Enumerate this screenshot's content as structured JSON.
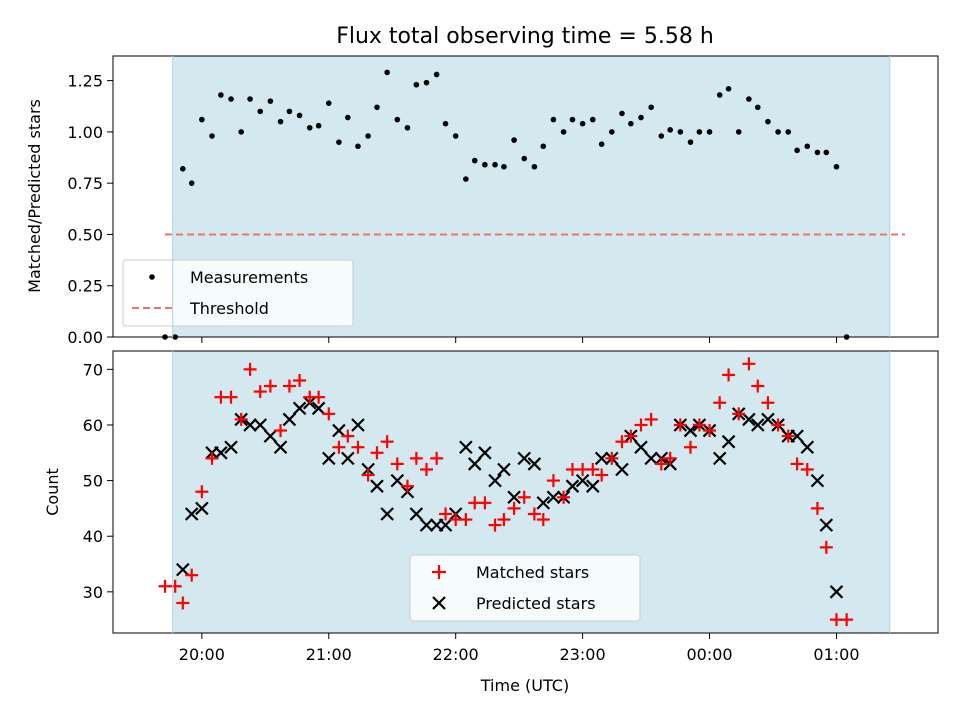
{
  "chart_data": [
    {
      "type": "scatter",
      "title": "Flux total observing time = 5.58 h",
      "xlabel": "",
      "ylabel": "Matched/Predicted stars",
      "xlim_hours": [
        19.3,
        25.8
      ],
      "ylim": [
        0,
        1.37
      ],
      "yticks": [
        0,
        0.25,
        0.5,
        0.75,
        1.0,
        1.25
      ],
      "ytick_labels": [
        "0.00",
        "0.25",
        "0.50",
        "0.75",
        "1.00",
        "1.25"
      ],
      "shaded_span_hours": [
        19.77,
        25.42
      ],
      "shade_color": "#d3e9ef",
      "legend_position": "lower-left",
      "series": [
        {
          "name": "Measurements",
          "marker": "dot",
          "color": "#000000",
          "points": [
            [
              19.71,
              0.0
            ],
            [
              19.79,
              0.0
            ],
            [
              19.85,
              0.82
            ],
            [
              19.92,
              0.75
            ],
            [
              20.0,
              1.06
            ],
            [
              20.08,
              0.98
            ],
            [
              20.15,
              1.18
            ],
            [
              20.23,
              1.16
            ],
            [
              20.31,
              1.0
            ],
            [
              20.38,
              1.16
            ],
            [
              20.46,
              1.1
            ],
            [
              20.54,
              1.15
            ],
            [
              20.62,
              1.05
            ],
            [
              20.69,
              1.1
            ],
            [
              20.77,
              1.08
            ],
            [
              20.85,
              1.02
            ],
            [
              20.92,
              1.03
            ],
            [
              21.0,
              1.14
            ],
            [
              21.08,
              0.95
            ],
            [
              21.15,
              1.07
            ],
            [
              21.23,
              0.93
            ],
            [
              21.31,
              0.98
            ],
            [
              21.38,
              1.12
            ],
            [
              21.46,
              1.29
            ],
            [
              21.54,
              1.06
            ],
            [
              21.62,
              1.02
            ],
            [
              21.69,
              1.23
            ],
            [
              21.77,
              1.24
            ],
            [
              21.85,
              1.28
            ],
            [
              21.92,
              1.04
            ],
            [
              22.0,
              0.98
            ],
            [
              22.08,
              0.77
            ],
            [
              22.15,
              0.86
            ],
            [
              22.23,
              0.84
            ],
            [
              22.31,
              0.84
            ],
            [
              22.38,
              0.83
            ],
            [
              22.46,
              0.96
            ],
            [
              22.54,
              0.87
            ],
            [
              22.62,
              0.83
            ],
            [
              22.69,
              0.93
            ],
            [
              22.77,
              1.06
            ],
            [
              22.85,
              1.0
            ],
            [
              22.92,
              1.06
            ],
            [
              23.0,
              1.04
            ],
            [
              23.08,
              1.06
            ],
            [
              23.15,
              0.94
            ],
            [
              23.23,
              1.0
            ],
            [
              23.31,
              1.09
            ],
            [
              23.38,
              1.04
            ],
            [
              23.46,
              1.07
            ],
            [
              23.54,
              1.12
            ],
            [
              23.62,
              0.98
            ],
            [
              23.69,
              1.01
            ],
            [
              23.77,
              1.0
            ],
            [
              23.85,
              0.95
            ],
            [
              23.92,
              1.0
            ],
            [
              24.0,
              1.0
            ],
            [
              24.08,
              1.18
            ],
            [
              24.15,
              1.21
            ],
            [
              24.23,
              1.0
            ],
            [
              24.31,
              1.16
            ],
            [
              24.38,
              1.12
            ],
            [
              24.46,
              1.05
            ],
            [
              24.54,
              1.0
            ],
            [
              24.62,
              1.0
            ],
            [
              24.69,
              0.91
            ],
            [
              24.77,
              0.93
            ],
            [
              24.85,
              0.9
            ],
            [
              24.92,
              0.9
            ],
            [
              25.0,
              0.83
            ],
            [
              25.08,
              0.0
            ]
          ]
        },
        {
          "name": "Threshold",
          "style": "dashed",
          "color": "#f07070",
          "x": [
            19.71,
            25.54
          ],
          "y": [
            0.5,
            0.5
          ]
        }
      ]
    },
    {
      "type": "scatter",
      "title": "",
      "xlabel": "Time (UTC)",
      "ylabel": "Count",
      "xlim_hours": [
        19.3,
        25.8
      ],
      "ylim": [
        22.6,
        73.3
      ],
      "yticks": [
        30,
        40,
        50,
        60,
        70
      ],
      "ytick_labels": [
        "30",
        "40",
        "50",
        "60",
        "70"
      ],
      "xticks_hours": [
        20,
        21,
        22,
        23,
        24,
        25
      ],
      "xtick_labels": [
        "20:00",
        "21:00",
        "22:00",
        "23:00",
        "00:00",
        "01:00"
      ],
      "shaded_span_hours": [
        19.77,
        25.42
      ],
      "shade_color": "#d3e9ef",
      "legend_position": "lower-center",
      "series": [
        {
          "name": "Matched stars",
          "marker": "plus",
          "color": "#ff0000",
          "points": [
            [
              19.71,
              31
            ],
            [
              19.79,
              31
            ],
            [
              19.85,
              28
            ],
            [
              19.92,
              33
            ],
            [
              20.0,
              48
            ],
            [
              20.08,
              54
            ],
            [
              20.15,
              65
            ],
            [
              20.23,
              65
            ],
            [
              20.31,
              61
            ],
            [
              20.38,
              70
            ],
            [
              20.46,
              66
            ],
            [
              20.54,
              67
            ],
            [
              20.62,
              59
            ],
            [
              20.69,
              67
            ],
            [
              20.77,
              68
            ],
            [
              20.85,
              65
            ],
            [
              20.92,
              65
            ],
            [
              21.0,
              62
            ],
            [
              21.08,
              56
            ],
            [
              21.15,
              58
            ],
            [
              21.23,
              56
            ],
            [
              21.31,
              51
            ],
            [
              21.38,
              55
            ],
            [
              21.46,
              57
            ],
            [
              21.54,
              53
            ],
            [
              21.62,
              49
            ],
            [
              21.69,
              54
            ],
            [
              21.77,
              52
            ],
            [
              21.85,
              54
            ],
            [
              21.92,
              44
            ],
            [
              22.0,
              43
            ],
            [
              22.08,
              43
            ],
            [
              22.15,
              46
            ],
            [
              22.23,
              46
            ],
            [
              22.31,
              42
            ],
            [
              22.38,
              43
            ],
            [
              22.46,
              45
            ],
            [
              22.54,
              47
            ],
            [
              22.62,
              44
            ],
            [
              22.69,
              43
            ],
            [
              22.77,
              50
            ],
            [
              22.85,
              47
            ],
            [
              22.92,
              52
            ],
            [
              23.0,
              52
            ],
            [
              23.08,
              52
            ],
            [
              23.15,
              51
            ],
            [
              23.23,
              54
            ],
            [
              23.31,
              57
            ],
            [
              23.38,
              58
            ],
            [
              23.46,
              60
            ],
            [
              23.54,
              61
            ],
            [
              23.62,
              53
            ],
            [
              23.69,
              54
            ],
            [
              23.77,
              60
            ],
            [
              23.85,
              56
            ],
            [
              23.92,
              60
            ],
            [
              24.0,
              59
            ],
            [
              24.08,
              64
            ],
            [
              24.15,
              69
            ],
            [
              24.23,
              62
            ],
            [
              24.31,
              71
            ],
            [
              24.38,
              67
            ],
            [
              24.46,
              64
            ],
            [
              24.54,
              60
            ],
            [
              24.62,
              58
            ],
            [
              24.69,
              53
            ],
            [
              24.77,
              52
            ],
            [
              24.85,
              45
            ],
            [
              24.92,
              38
            ],
            [
              25.0,
              25
            ],
            [
              25.08,
              25
            ]
          ]
        },
        {
          "name": "Predicted stars",
          "marker": "x",
          "color": "#000000",
          "points": [
            [
              19.85,
              34
            ],
            [
              19.92,
              44
            ],
            [
              20.0,
              45
            ],
            [
              20.08,
              55
            ],
            [
              20.15,
              55
            ],
            [
              20.23,
              56
            ],
            [
              20.31,
              61
            ],
            [
              20.38,
              60
            ],
            [
              20.46,
              60
            ],
            [
              20.54,
              58
            ],
            [
              20.62,
              56
            ],
            [
              20.69,
              61
            ],
            [
              20.77,
              63
            ],
            [
              20.85,
              64
            ],
            [
              20.92,
              63
            ],
            [
              21.0,
              54
            ],
            [
              21.08,
              59
            ],
            [
              21.15,
              54
            ],
            [
              21.23,
              60
            ],
            [
              21.31,
              52
            ],
            [
              21.38,
              49
            ],
            [
              21.46,
              44
            ],
            [
              21.54,
              50
            ],
            [
              21.62,
              48
            ],
            [
              21.69,
              44
            ],
            [
              21.77,
              42
            ],
            [
              21.85,
              42
            ],
            [
              21.92,
              42
            ],
            [
              22.0,
              44
            ],
            [
              22.08,
              56
            ],
            [
              22.15,
              53
            ],
            [
              22.23,
              55
            ],
            [
              22.31,
              50
            ],
            [
              22.38,
              52
            ],
            [
              22.46,
              47
            ],
            [
              22.54,
              54
            ],
            [
              22.62,
              53
            ],
            [
              22.69,
              46
            ],
            [
              22.77,
              47
            ],
            [
              22.85,
              47
            ],
            [
              22.92,
              49
            ],
            [
              23.0,
              50
            ],
            [
              23.08,
              49
            ],
            [
              23.15,
              54
            ],
            [
              23.23,
              54
            ],
            [
              23.31,
              52
            ],
            [
              23.38,
              58
            ],
            [
              23.46,
              56
            ],
            [
              23.54,
              54
            ],
            [
              23.62,
              54
            ],
            [
              23.69,
              53
            ],
            [
              23.77,
              60
            ],
            [
              23.85,
              59
            ],
            [
              23.92,
              60
            ],
            [
              24.0,
              59
            ],
            [
              24.08,
              54
            ],
            [
              24.15,
              57
            ],
            [
              24.23,
              62
            ],
            [
              24.31,
              61
            ],
            [
              24.38,
              60
            ],
            [
              24.46,
              61
            ],
            [
              24.54,
              60
            ],
            [
              24.62,
              58
            ],
            [
              24.69,
              58
            ],
            [
              24.77,
              56
            ],
            [
              24.85,
              50
            ],
            [
              24.92,
              42
            ],
            [
              25.0,
              30
            ]
          ]
        }
      ]
    }
  ]
}
